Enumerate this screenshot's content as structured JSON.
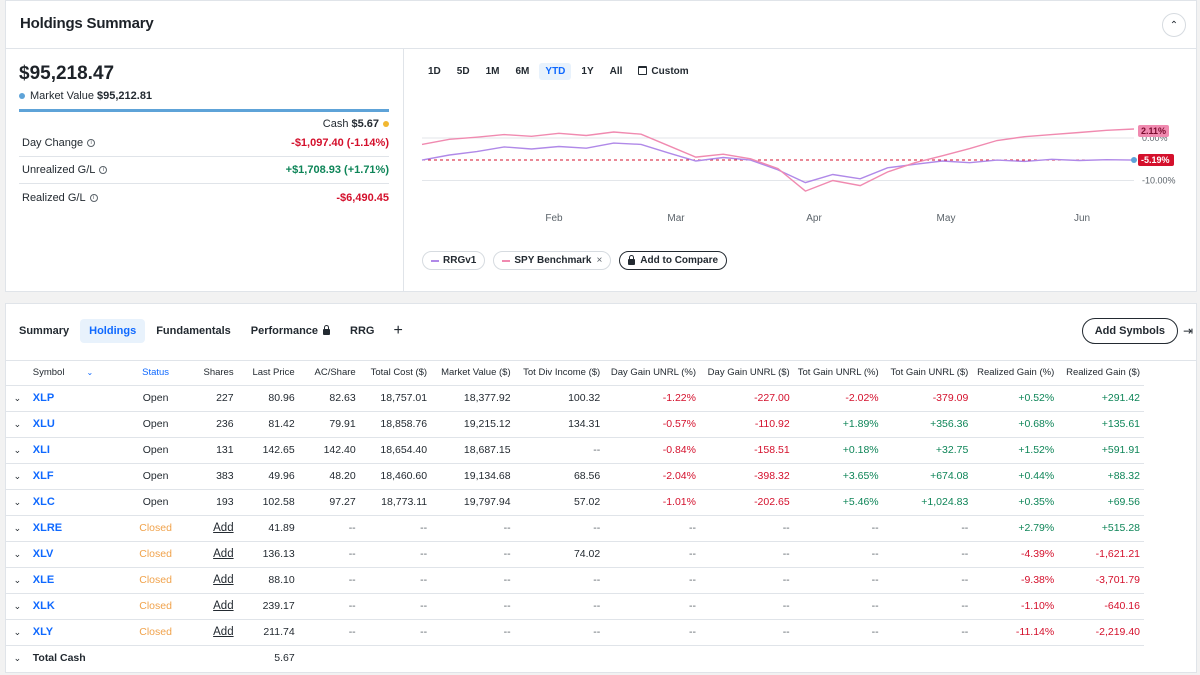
{
  "header": {
    "title": "Holdings Summary"
  },
  "summary": {
    "total_value": "$95,218.47",
    "market_value_label": "Market Value",
    "market_value": "$95,212.81",
    "cash_label": "Cash",
    "cash_value": "$5.67",
    "rows": [
      {
        "label": "Day Change",
        "value": "-$1,097.40 (-1.14%)",
        "tone": "neg"
      },
      {
        "label": "Unrealized G/L",
        "value": "+$1,708.93 (+1.71%)",
        "tone": "pos"
      },
      {
        "label": "Realized G/L",
        "value": "-$6,490.45",
        "tone": "neg"
      }
    ],
    "colors": {
      "market_value": "#5ea3d8",
      "cash": "#f1b731"
    }
  },
  "chart_controls": {
    "ranges": [
      "1D",
      "5D",
      "1M",
      "6M",
      "YTD",
      "1Y",
      "All"
    ],
    "active_range": "YTD",
    "custom_label": "Custom"
  },
  "chart_data": {
    "type": "line",
    "x_labels": [
      "Feb",
      "Mar",
      "Apr",
      "May",
      "Jun"
    ],
    "y_ticks": [
      "0.00%",
      "-10.00%"
    ],
    "end_labels": [
      {
        "series": "SPY Benchmark",
        "value": "2.11%"
      },
      {
        "series": "RRGv1",
        "value": "-5.19%"
      }
    ],
    "reference_line": -5.19,
    "ylim": [
      -12,
      4
    ],
    "series": [
      {
        "name": "RRGv1",
        "color": "#b089e8",
        "values": [
          -5.19,
          -4.0,
          -3.2,
          -2.1,
          -2.6,
          -2.0,
          -2.4,
          -1.2,
          -1.5,
          -3.5,
          -5.4,
          -4.6,
          -5.2,
          -7.5,
          -10.5,
          -8.6,
          -9.6,
          -7.0,
          -6.2,
          -5.4,
          -5.8,
          -5.2,
          -5.5,
          -5.0,
          -5.3,
          -5.1,
          -5.19
        ]
      },
      {
        "name": "SPY Benchmark",
        "color": "#f08ab0",
        "values": [
          -1.5,
          -0.3,
          0.2,
          0.8,
          0.4,
          1.1,
          0.6,
          1.4,
          0.9,
          -1.8,
          -4.5,
          -3.8,
          -4.9,
          -7.2,
          -12.5,
          -10.0,
          -11.2,
          -8.0,
          -5.8,
          -4.2,
          -2.5,
          -0.6,
          0.3,
          0.8,
          1.3,
          1.8,
          2.11
        ]
      }
    ]
  },
  "legend": {
    "rrg": "RRGv1",
    "spy": "SPY Benchmark",
    "spy_remove": "×",
    "compare": "Add to Compare"
  },
  "tabs": {
    "items": [
      "Summary",
      "Holdings",
      "Fundamentals",
      "Performance",
      "RRG"
    ],
    "active": "Holdings",
    "plus": "+",
    "add_symbols": "Add Symbols",
    "compress": "⇥"
  },
  "table": {
    "columns": [
      "Symbol",
      "Status",
      "Shares",
      "Last Price",
      "AC/Share",
      "Total Cost ($)",
      "Market Value ($)",
      "Tot Div Income ($)",
      "Day Gain UNRL (%)",
      "Day Gain UNRL ($)",
      "Tot Gain UNRL (%)",
      "Tot Gain UNRL ($)",
      "Realized Gain (%)",
      "Realized Gain ($)"
    ],
    "add_label": "Add",
    "rows": [
      {
        "symbol": "XLP",
        "status": "Open",
        "shares": "227",
        "last": "80.96",
        "ac": "82.63",
        "cost": "18,757.01",
        "mv": "18,377.92",
        "div": "100.32",
        "dgp": "-1.22%",
        "dgd": "-227.00",
        "tgp": "-2.02%",
        "tgd": "-379.09",
        "rgp": "+0.52%",
        "rgd": "+291.42"
      },
      {
        "symbol": "XLU",
        "status": "Open",
        "shares": "236",
        "last": "81.42",
        "ac": "79.91",
        "cost": "18,858.76",
        "mv": "19,215.12",
        "div": "134.31",
        "dgp": "-0.57%",
        "dgd": "-110.92",
        "tgp": "+1.89%",
        "tgd": "+356.36",
        "rgp": "+0.68%",
        "rgd": "+135.61"
      },
      {
        "symbol": "XLI",
        "status": "Open",
        "shares": "131",
        "last": "142.65",
        "ac": "142.40",
        "cost": "18,654.40",
        "mv": "18,687.15",
        "div": "--",
        "dgp": "-0.84%",
        "dgd": "-158.51",
        "tgp": "+0.18%",
        "tgd": "+32.75",
        "rgp": "+1.52%",
        "rgd": "+591.91"
      },
      {
        "symbol": "XLF",
        "status": "Open",
        "shares": "383",
        "last": "49.96",
        "ac": "48.20",
        "cost": "18,460.60",
        "mv": "19,134.68",
        "div": "68.56",
        "dgp": "-2.04%",
        "dgd": "-398.32",
        "tgp": "+3.65%",
        "tgd": "+674.08",
        "rgp": "+0.44%",
        "rgd": "+88.32"
      },
      {
        "symbol": "XLC",
        "status": "Open",
        "shares": "193",
        "last": "102.58",
        "ac": "97.27",
        "cost": "18,773.11",
        "mv": "19,797.94",
        "div": "57.02",
        "dgp": "-1.01%",
        "dgd": "-202.65",
        "tgp": "+5.46%",
        "tgd": "+1,024.83",
        "rgp": "+0.35%",
        "rgd": "+69.56"
      },
      {
        "symbol": "XLRE",
        "status": "Closed",
        "shares": "Add",
        "last": "41.89",
        "ac": "--",
        "cost": "--",
        "mv": "--",
        "div": "--",
        "dgp": "--",
        "dgd": "--",
        "tgp": "--",
        "tgd": "--",
        "rgp": "+2.79%",
        "rgd": "+515.28"
      },
      {
        "symbol": "XLV",
        "status": "Closed",
        "shares": "Add",
        "last": "136.13",
        "ac": "--",
        "cost": "--",
        "mv": "--",
        "div": "74.02",
        "dgp": "--",
        "dgd": "--",
        "tgp": "--",
        "tgd": "--",
        "rgp": "-4.39%",
        "rgd": "-1,621.21"
      },
      {
        "symbol": "XLE",
        "status": "Closed",
        "shares": "Add",
        "last": "88.10",
        "ac": "--",
        "cost": "--",
        "mv": "--",
        "div": "--",
        "dgp": "--",
        "dgd": "--",
        "tgp": "--",
        "tgd": "--",
        "rgp": "-9.38%",
        "rgd": "-3,701.79"
      },
      {
        "symbol": "XLK",
        "status": "Closed",
        "shares": "Add",
        "last": "239.17",
        "ac": "--",
        "cost": "--",
        "mv": "--",
        "div": "--",
        "dgp": "--",
        "dgd": "--",
        "tgp": "--",
        "tgd": "--",
        "rgp": "-1.10%",
        "rgd": "-640.16"
      },
      {
        "symbol": "XLY",
        "status": "Closed",
        "shares": "Add",
        "last": "211.74",
        "ac": "--",
        "cost": "--",
        "mv": "--",
        "div": "--",
        "dgp": "--",
        "dgd": "--",
        "tgp": "--",
        "tgd": "--",
        "rgp": "-11.14%",
        "rgd": "-2,219.40"
      }
    ],
    "total_cash_label": "Total Cash",
    "total_cash_value": "5.67"
  },
  "colors": {
    "positive": "#0e8558",
    "negative": "#d4102c",
    "link": "#0f69ff",
    "closed": "#f0a24b"
  }
}
